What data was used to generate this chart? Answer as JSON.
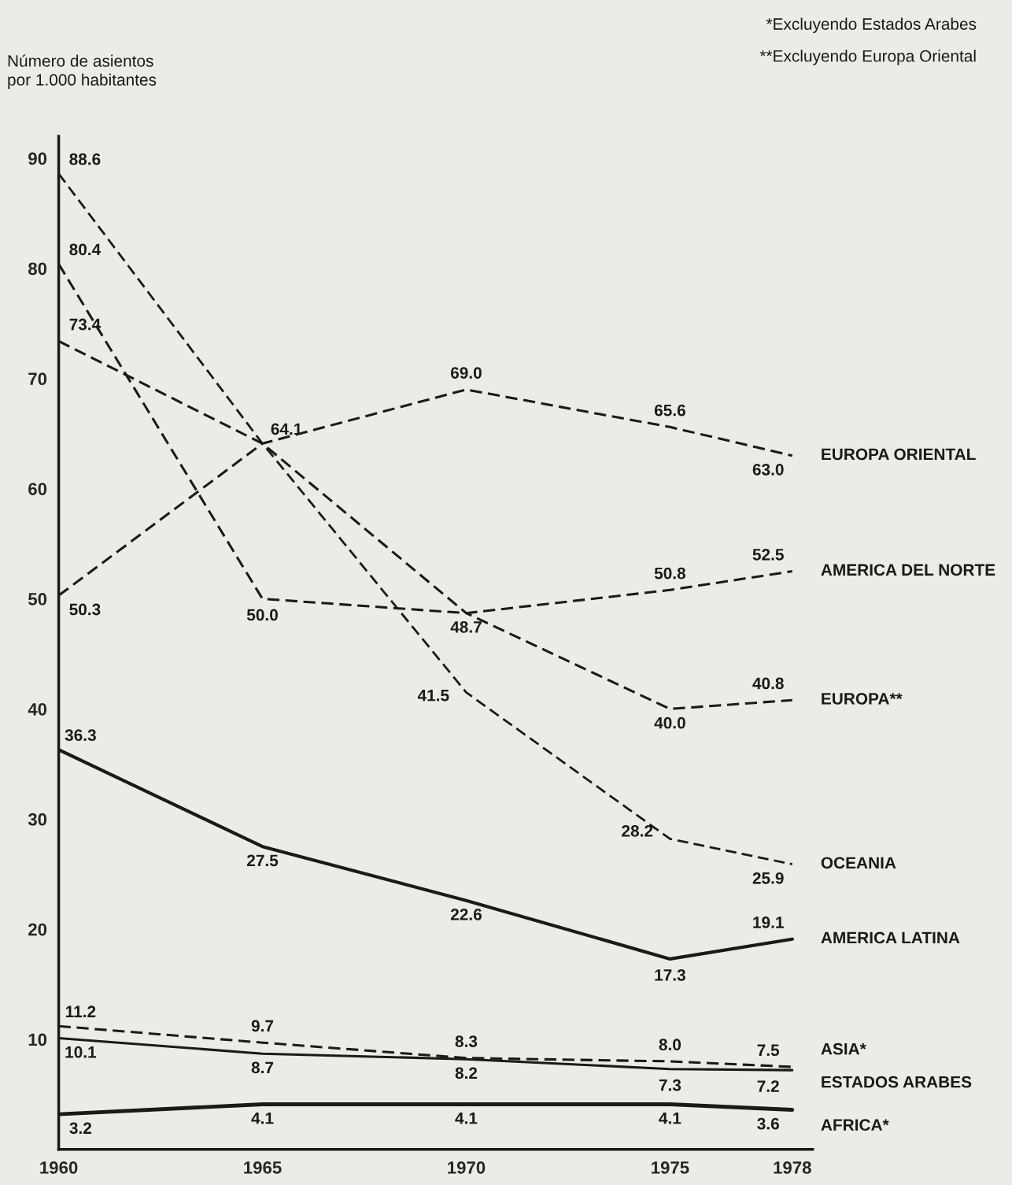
{
  "chart_data": {
    "type": "line",
    "ylabel": "Número de asientos\npor 1.000 habitantes",
    "x": [
      1960,
      1965,
      1970,
      1975,
      1978
    ],
    "xlim": [
      1960,
      1978.5
    ],
    "xticks": [
      1960,
      1965,
      1970,
      1975,
      1978
    ],
    "ylim": [
      0,
      92
    ],
    "yticks": [
      10,
      20,
      30,
      40,
      50,
      60,
      70,
      80,
      90
    ],
    "grid": false,
    "legend": false,
    "marker": "none",
    "annotations": [
      "*Excluyendo Estados Arabes",
      "**Excluyendo Europa Oriental"
    ],
    "series": [
      {
        "name": "EUROPA ORIENTAL",
        "color": "#1a1a1a",
        "line_style": "dashed",
        "values": [
          50.3,
          64.1,
          69.0,
          65.6,
          63.0
        ],
        "value_labels": [
          "50.3",
          "64.1",
          "69.0",
          "65.6",
          "63.0"
        ]
      },
      {
        "name": "AMERICA DEL NORTE",
        "color": "#1a1a1a",
        "line_style": "dashed",
        "values": [
          80.4,
          50.0,
          48.7,
          50.8,
          52.5
        ],
        "value_labels": [
          "80.4",
          "50.0",
          "48.7",
          "50.8",
          "52.5"
        ]
      },
      {
        "name": "EUROPA**",
        "color": "#1a1a1a",
        "line_style": "dashed",
        "values": [
          73.4,
          64.1,
          48.7,
          40.0,
          40.8
        ],
        "value_labels": [
          "73.4",
          null,
          null,
          "40.0",
          "40.8"
        ]
      },
      {
        "name": "OCEANIA",
        "color": "#1a1a1a",
        "line_style": "dashed",
        "values": [
          88.6,
          64.1,
          41.5,
          28.2,
          25.9
        ],
        "value_labels": [
          "88.6",
          null,
          "41.5",
          "28.2",
          "25.9"
        ]
      },
      {
        "name": "AMERICA LATINA",
        "color": "#1a1a1a",
        "line_style": "solid",
        "values": [
          36.3,
          27.5,
          22.6,
          17.3,
          19.1
        ],
        "value_labels": [
          "36.3",
          "27.5",
          "22.6",
          "17.3",
          "19.1"
        ]
      },
      {
        "name": "ASIA*",
        "color": "#1a1a1a",
        "line_style": "dashed",
        "values": [
          11.2,
          9.7,
          8.3,
          8.0,
          7.5
        ],
        "value_labels": [
          "11.2",
          "9.7",
          "8.3",
          "8.0",
          "7.5"
        ]
      },
      {
        "name": "ESTADOS ARABES",
        "color": "#1a1a1a",
        "line_style": "solid",
        "values": [
          10.1,
          8.7,
          8.2,
          7.3,
          7.2
        ],
        "value_labels": [
          "10.1",
          "8.7",
          "8.2",
          "7.3",
          "7.2"
        ]
      },
      {
        "name": "AFRICA*",
        "color": "#1a1a1a",
        "line_style": "solid",
        "values": [
          3.2,
          4.1,
          4.1,
          4.1,
          3.6
        ],
        "value_labels": [
          "3.2",
          "4.1",
          "4.1",
          "4.1",
          "3.6"
        ]
      }
    ]
  }
}
